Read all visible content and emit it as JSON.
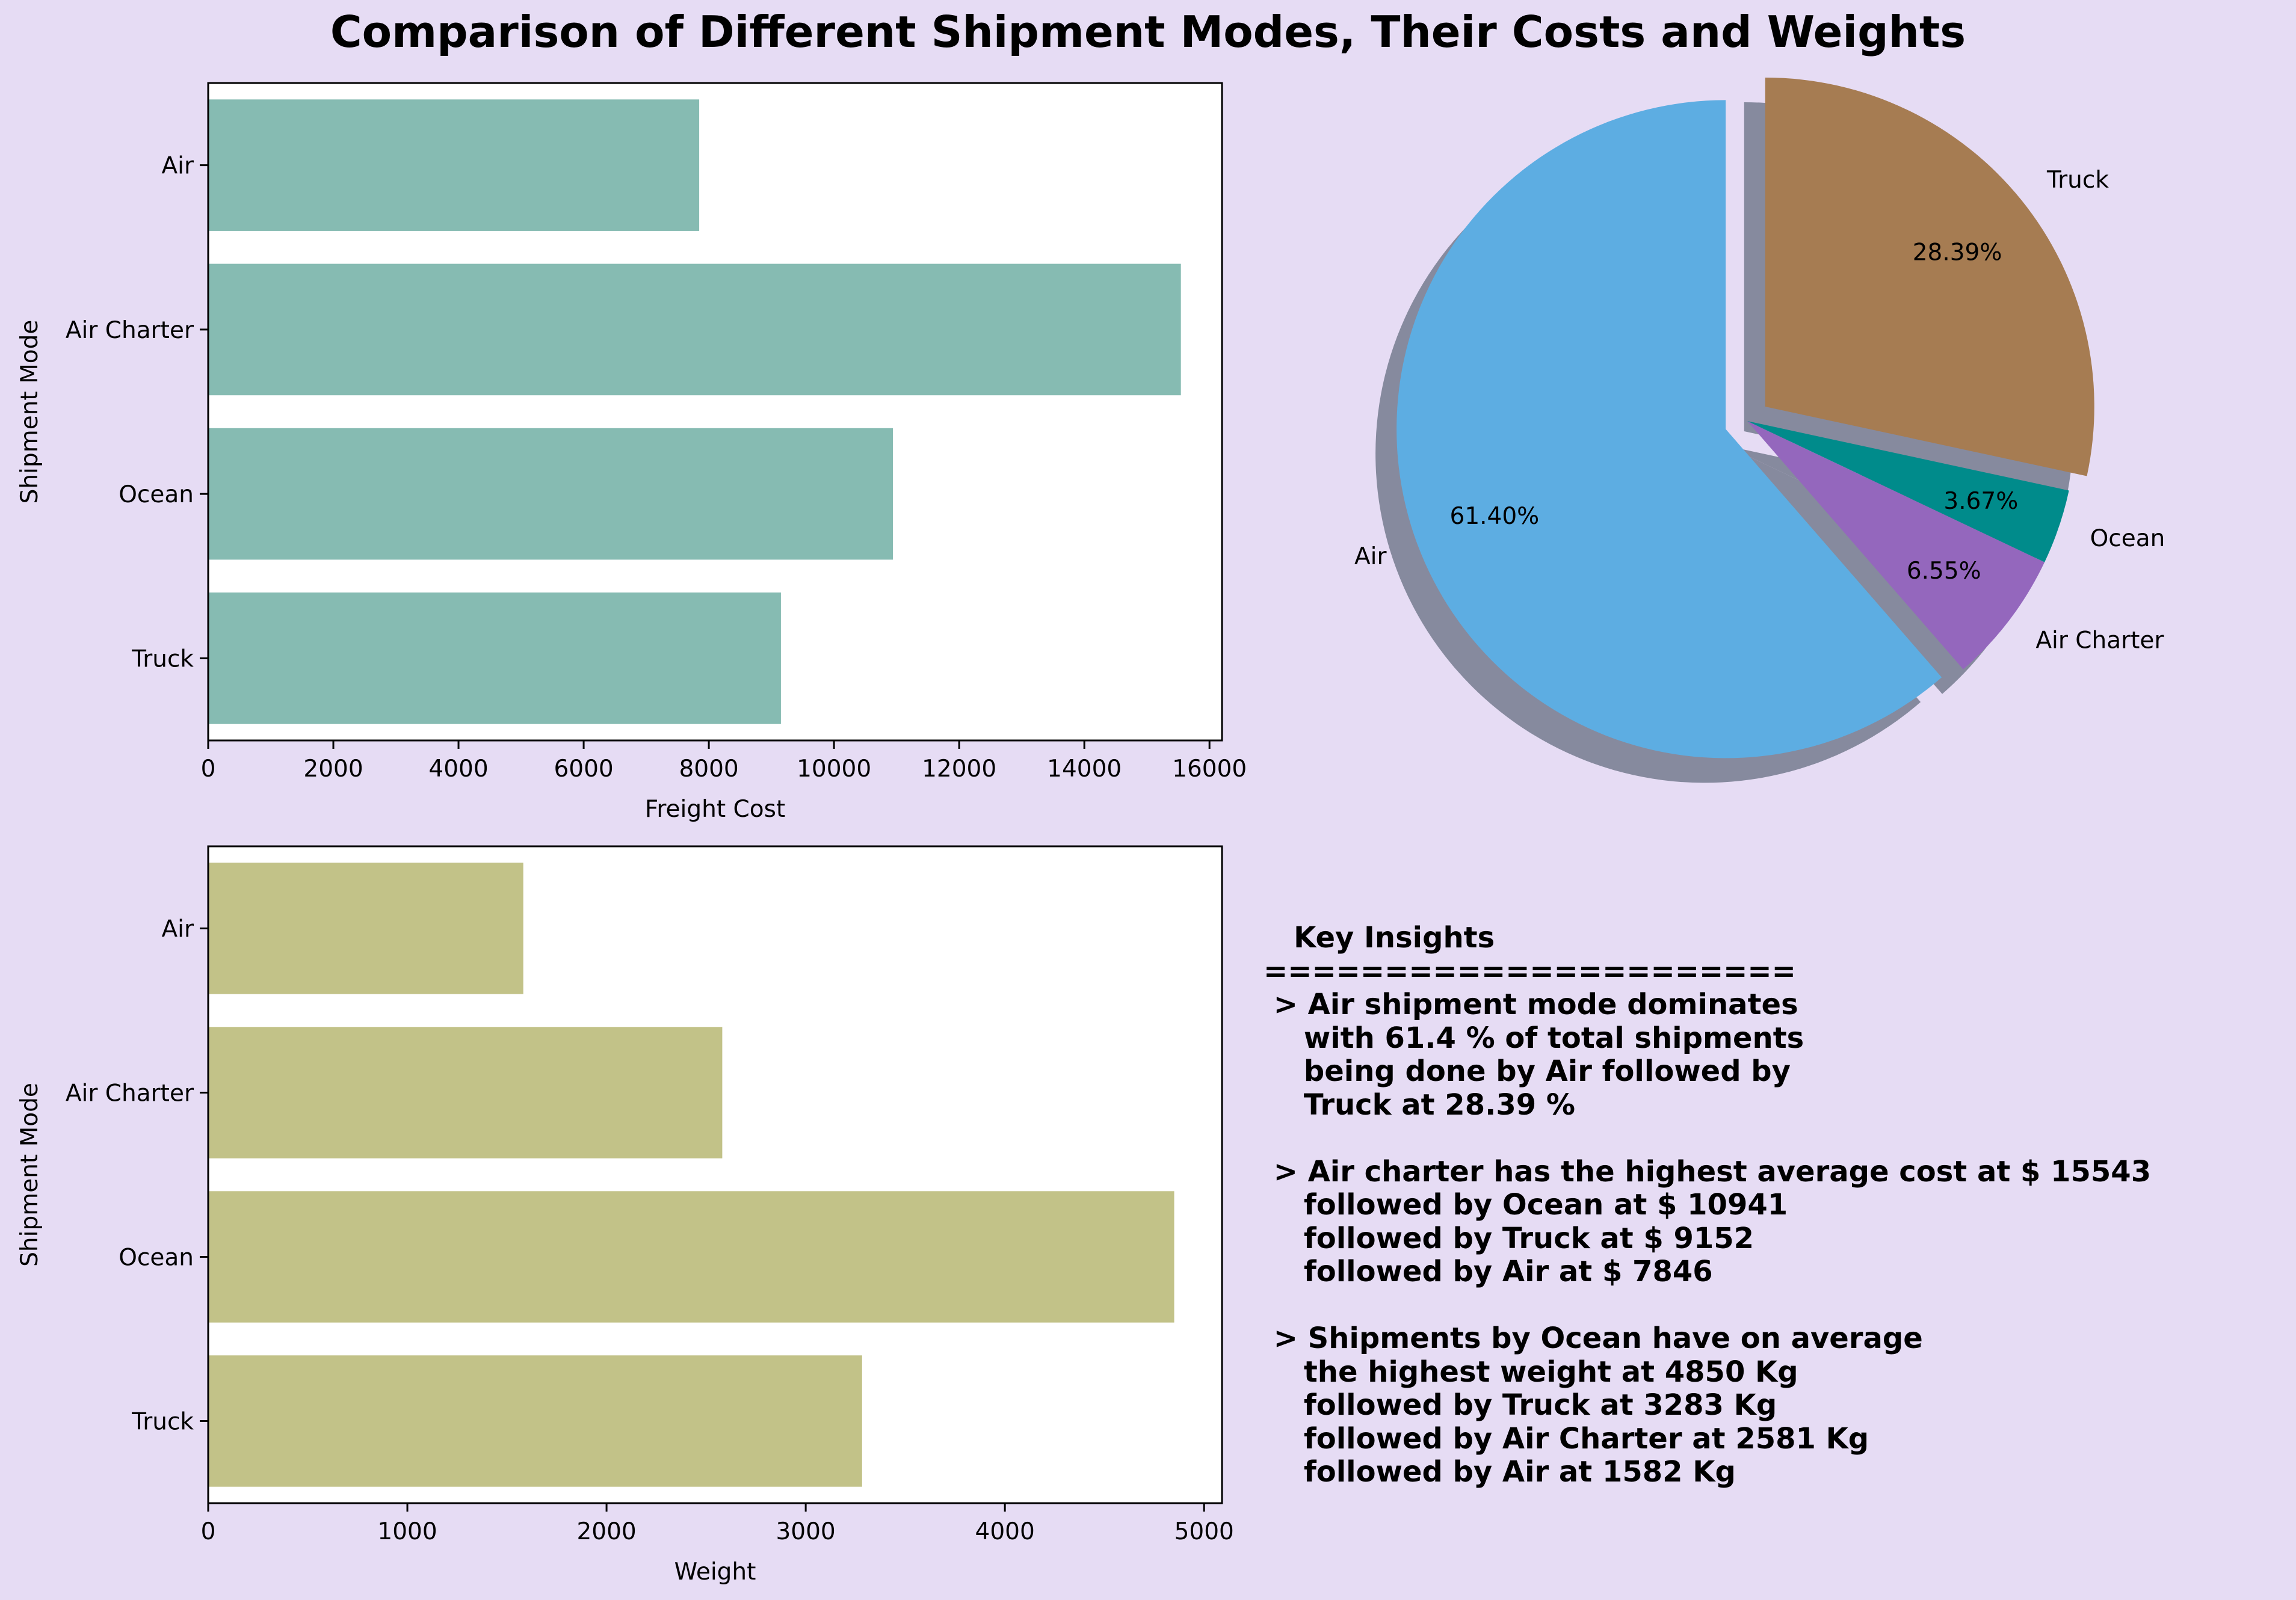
{
  "title": "Comparison of Different Shipment Modes, Their Costs and Weights",
  "colors": {
    "background": "#e6dcf4",
    "cost_bar": "#86bbb2",
    "weight_bar": "#c2c288",
    "pie": [
      "#5dade2",
      "#9467bd",
      "#008b8b",
      "#a67c52"
    ],
    "pie_shadow": "#84889c"
  },
  "chart_data": [
    {
      "type": "bar",
      "orientation": "horizontal",
      "categories": [
        "Air",
        "Air Charter",
        "Ocean",
        "Truck"
      ],
      "values": [
        7846,
        15543,
        10941,
        9152
      ],
      "xlabel": "Freight Cost",
      "ylabel": "Shipment Mode",
      "xlim": [
        0,
        16200
      ],
      "xticks": [
        "0",
        "2000",
        "4000",
        "6000",
        "8000",
        "10000",
        "12000",
        "14000",
        "16000"
      ],
      "grid": false
    },
    {
      "type": "pie",
      "labels": [
        "Air",
        "Air Charter",
        "Ocean",
        "Truck"
      ],
      "values": [
        61.4,
        6.55,
        3.67,
        28.39
      ],
      "autopct": [
        "61.40%",
        "6.55%",
        "3.67%",
        "28.39%"
      ],
      "exploded": [
        "Air",
        "Truck"
      ],
      "shadow": true
    },
    {
      "type": "bar",
      "orientation": "horizontal",
      "categories": [
        "Air",
        "Air Charter",
        "Ocean",
        "Truck"
      ],
      "values": [
        1582,
        2581,
        4850,
        3283
      ],
      "xlabel": "Weight",
      "ylabel": "Shipment Mode",
      "xlim": [
        0,
        5090
      ],
      "xticks": [
        "0",
        "1000",
        "2000",
        "3000",
        "4000",
        "5000"
      ],
      "grid": false
    }
  ],
  "insights": "   Key Insights\n======================\n > Air shipment mode dominates\n    with 61.4 % of total shipments\n    being done by Air followed by\n    Truck at 28.39 %\n\n > Air charter has the highest average cost at $ 15543\n    followed by Ocean at $ 10941\n    followed by Truck at $ 9152\n    followed by Air at $ 7846\n\n > Shipments by Ocean have on average\n    the highest weight at 4850 Kg\n    followed by Truck at 3283 Kg\n    followed by Air Charter at 2581 Kg\n    followed by Air at 1582 Kg"
}
